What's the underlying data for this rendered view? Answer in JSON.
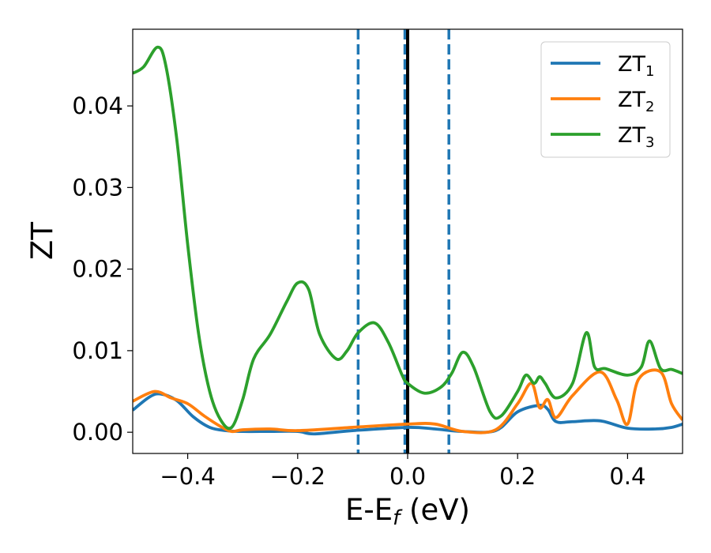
{
  "chart_data": {
    "type": "line",
    "xlabel": {
      "main": "E-E",
      "sub": "f",
      "unit": " (eV)"
    },
    "ylabel": "ZT",
    "xlim": [
      -0.5,
      0.5
    ],
    "ylim": [
      -0.0026,
      0.0494
    ],
    "xticks": [
      {
        "value": -0.4,
        "label": "−0.4"
      },
      {
        "value": -0.2,
        "label": "−0.2"
      },
      {
        "value": 0.0,
        "label": "0.0"
      },
      {
        "value": 0.2,
        "label": "0.2"
      },
      {
        "value": 0.4,
        "label": "0.4"
      }
    ],
    "yticks": [
      {
        "value": 0.0,
        "label": "0.00"
      },
      {
        "value": 0.01,
        "label": "0.01"
      },
      {
        "value": 0.02,
        "label": "0.02"
      },
      {
        "value": 0.03,
        "label": "0.03"
      },
      {
        "value": 0.04,
        "label": "0.04"
      }
    ],
    "grid": false,
    "legend_position": "top-right",
    "vlines": [
      {
        "x": -0.09,
        "style": "dashed",
        "color": "#1f77b4"
      },
      {
        "x": -0.005,
        "style": "dashed",
        "color": "#1f77b4"
      },
      {
        "x": 0.075,
        "style": "dashed",
        "color": "#1f77b4"
      },
      {
        "x": 0.0,
        "style": "solid",
        "color": "#000000"
      }
    ],
    "series": [
      {
        "name": "ZT",
        "sub": "1",
        "color": "#1f77b4",
        "x": [
          -0.5,
          -0.47,
          -0.45,
          -0.42,
          -0.39,
          -0.36,
          -0.33,
          -0.3,
          -0.25,
          -0.2,
          -0.17,
          -0.1,
          0.0,
          0.05,
          0.1,
          0.16,
          0.2,
          0.24,
          0.255,
          0.27,
          0.3,
          0.35,
          0.4,
          0.45,
          0.48,
          0.5
        ],
        "y": [
          0.0027,
          0.0043,
          0.0047,
          0.0039,
          0.0019,
          0.0006,
          0.0002,
          0.0001,
          0.0001,
          0.0001,
          -0.0002,
          0.0002,
          0.0006,
          0.0004,
          0.0001,
          0.0002,
          0.0025,
          0.0033,
          0.0028,
          0.0013,
          0.0013,
          0.0014,
          0.0005,
          0.0004,
          0.0006,
          0.001
        ]
      },
      {
        "name": "ZT",
        "sub": "2",
        "color": "#ff7f0e",
        "x": [
          -0.5,
          -0.46,
          -0.43,
          -0.4,
          -0.37,
          -0.34,
          -0.32,
          -0.3,
          -0.25,
          -0.2,
          -0.1,
          0.0,
          0.05,
          0.1,
          0.16,
          0.2,
          0.225,
          0.24,
          0.255,
          0.27,
          0.3,
          0.35,
          0.38,
          0.4,
          0.42,
          0.46,
          0.48,
          0.5
        ],
        "y": [
          0.0038,
          0.005,
          0.0042,
          0.0035,
          0.002,
          0.0007,
          0.0001,
          0.0003,
          0.0004,
          0.0002,
          0.0006,
          0.001,
          0.001,
          0.0001,
          0.0003,
          0.0035,
          0.006,
          0.003,
          0.004,
          0.0018,
          0.0045,
          0.0074,
          0.004,
          0.001,
          0.0065,
          0.0074,
          0.0035,
          0.0015
        ]
      },
      {
        "name": "ZT",
        "sub": "3",
        "color": "#2ca02c",
        "x": [
          -0.5,
          -0.48,
          -0.455,
          -0.44,
          -0.42,
          -0.4,
          -0.38,
          -0.36,
          -0.34,
          -0.32,
          -0.3,
          -0.28,
          -0.25,
          -0.22,
          -0.2,
          -0.18,
          -0.16,
          -0.13,
          -0.11,
          -0.09,
          -0.06,
          -0.035,
          -0.01,
          0.0,
          0.03,
          0.06,
          0.08,
          0.1,
          0.12,
          0.15,
          0.17,
          0.2,
          0.215,
          0.23,
          0.24,
          0.25,
          0.27,
          0.3,
          0.325,
          0.34,
          0.36,
          0.4,
          0.425,
          0.44,
          0.46,
          0.48,
          0.5
        ],
        "y": [
          0.044,
          0.0448,
          0.0472,
          0.045,
          0.036,
          0.023,
          0.012,
          0.005,
          0.0015,
          0.0006,
          0.004,
          0.009,
          0.012,
          0.016,
          0.0183,
          0.0175,
          0.012,
          0.009,
          0.01,
          0.0122,
          0.0134,
          0.011,
          0.007,
          0.006,
          0.0048,
          0.0055,
          0.0072,
          0.0098,
          0.008,
          0.0025,
          0.002,
          0.005,
          0.007,
          0.006,
          0.0068,
          0.006,
          0.0042,
          0.006,
          0.0122,
          0.008,
          0.0078,
          0.007,
          0.008,
          0.0112,
          0.0078,
          0.0077,
          0.0072
        ]
      }
    ]
  }
}
